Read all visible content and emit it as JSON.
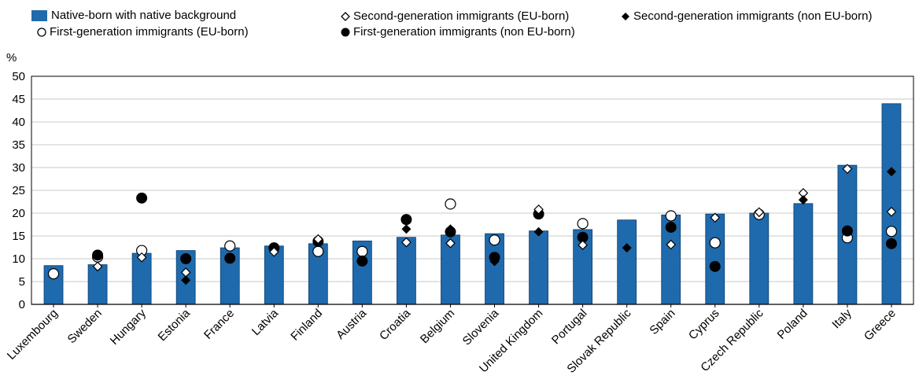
{
  "chart_data": {
    "type": "bar",
    "title": "",
    "xlabel": "",
    "ylabel": "%",
    "ylim": [
      0,
      50
    ],
    "yticks": [
      0,
      5,
      10,
      15,
      20,
      25,
      30,
      35,
      40,
      45,
      50
    ],
    "grid": true,
    "legend_position": "top",
    "bar_color": "#1f6aad",
    "categories": [
      "Luxembourg",
      "Sweden",
      "Hungary",
      "Estonia",
      "France",
      "Latvia",
      "Finland",
      "Austria",
      "Croatia",
      "Belgium",
      "Slovenia",
      "United Kingdom",
      "Portugal",
      "Slovak Republic",
      "Spain",
      "Cyprus",
      "Czech Republic",
      "Poland",
      "Italy",
      "Greece"
    ],
    "series": [
      {
        "name": "Native-born with native background",
        "marker": "bar",
        "values": [
          8.5,
          8.7,
          11.2,
          11.8,
          12.4,
          12.8,
          13.3,
          13.9,
          14.7,
          15.2,
          15.5,
          16.1,
          16.4,
          18.5,
          19.6,
          19.8,
          20.0,
          22.1,
          30.5,
          44.0
        ]
      },
      {
        "name": "Second-generation immigrants (EU-born)",
        "marker": "open-diamond",
        "values": [
          null,
          8.3,
          10.3,
          7.0,
          null,
          11.5,
          14.3,
          null,
          13.6,
          13.4,
          null,
          20.8,
          13.0,
          null,
          13.1,
          19.0,
          20.2,
          24.4,
          29.7,
          20.3
        ]
      },
      {
        "name": "Second-generation immigrants (non EU-born)",
        "marker": "filled-diamond",
        "values": [
          null,
          null,
          null,
          5.3,
          null,
          null,
          null,
          null,
          16.5,
          16.5,
          9.4,
          15.9,
          null,
          12.4,
          null,
          null,
          null,
          22.9,
          null,
          29.1
        ]
      },
      {
        "name": "First-generation immigrants (EU-born)",
        "marker": "open-circle",
        "values": [
          6.7,
          10.4,
          11.8,
          null,
          12.8,
          null,
          11.6,
          11.6,
          null,
          22.0,
          14.1,
          null,
          17.7,
          null,
          19.4,
          13.5,
          19.7,
          null,
          14.6,
          16.0
        ]
      },
      {
        "name": "First-generation immigrants (non EU-born)",
        "marker": "filled-circle",
        "values": [
          null,
          10.8,
          23.3,
          10.0,
          10.1,
          12.4,
          13.8,
          9.5,
          18.6,
          15.9,
          10.3,
          19.8,
          14.7,
          null,
          16.9,
          8.3,
          null,
          null,
          16.1,
          13.3
        ]
      }
    ]
  }
}
